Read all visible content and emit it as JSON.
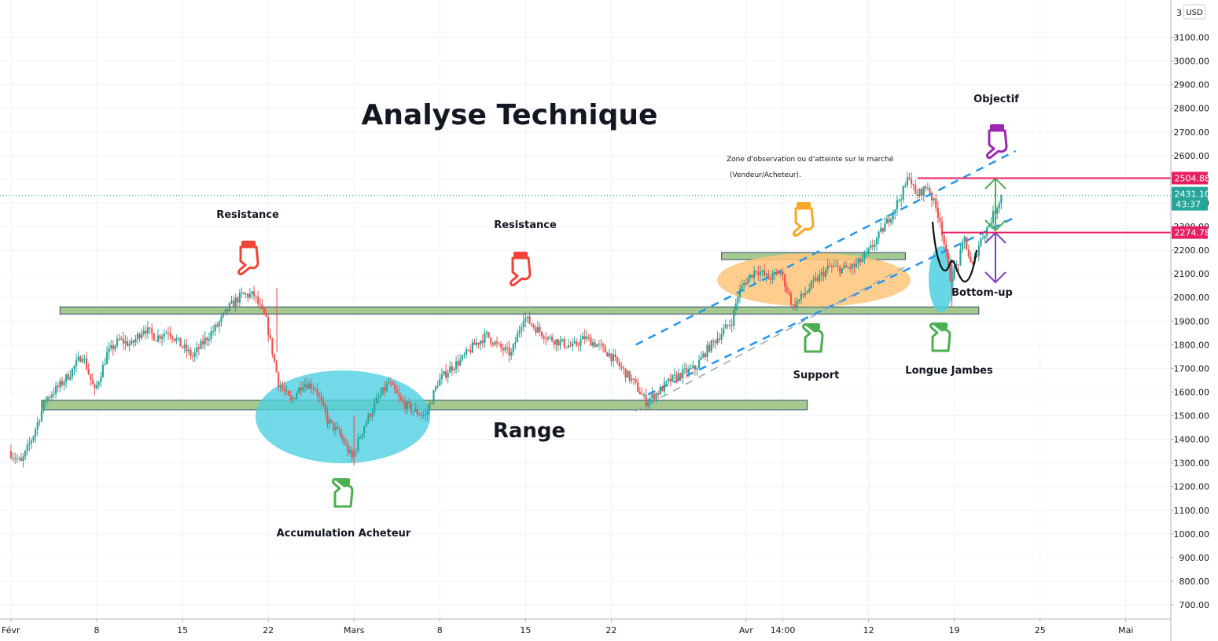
{
  "title": "Analyse Technique",
  "currency": "USD",
  "annotations": {
    "resistance_left": "Resistance",
    "resistance_mid": "Resistance",
    "range": "Range",
    "accumulation": "Accumulation Acheteur",
    "support": "Support",
    "longue_jambes": "Longue Jambes",
    "bottom_up": "Bottom-up",
    "objectif": "Objectif",
    "zone_line1": "Zone d'observation ou d'atteinte sur le marché",
    "zone_line2": "(Vendeur/Acheteur)."
  },
  "colors": {
    "up": "#26a69a",
    "down": "#ef5350",
    "zone_green": "#a5c98f",
    "ellipse_cyan": "#4dd0e1",
    "ellipse_orange": "#ffc57a",
    "trend_blue": "#2196f3",
    "hand_red": "#f44336",
    "hand_green": "#4caf50",
    "hand_orange": "#f9a825",
    "hand_purple": "#9c27b0",
    "price_badge": "#e91e63",
    "last_badge": "#26a69a"
  },
  "chart_data": {
    "type": "candlestick",
    "y_axis": {
      "min": 650,
      "max": 3150,
      "ticks": [
        700,
        800,
        900,
        1000,
        1100,
        1200,
        1300,
        1400,
        1500,
        1600,
        1700,
        1800,
        1900,
        2000,
        2100,
        2200,
        2300,
        2400,
        2500,
        2600,
        2700,
        2800,
        2900,
        3000,
        3100
      ],
      "tick_labels": [
        "700.00",
        "800.00",
        "900.00",
        "1000.00",
        "1100.00",
        "1200.00",
        "1300.00",
        "1400.00",
        "1500.00",
        "1600.00",
        "1700.00",
        "1800.00",
        "1900.00",
        "2000.00",
        "2100.00",
        "2200.00",
        "2300.00",
        "2400.00",
        "2500.00",
        "2600.00",
        "2700.00",
        "2800.00",
        "2900.00",
        "3000.00",
        "3100.00"
      ],
      "top_partial_label": "3"
    },
    "x_axis": {
      "day_min": 1,
      "day_max": 92,
      "tick_days": [
        1,
        8,
        15,
        22,
        29,
        36,
        43,
        50,
        61,
        64,
        71,
        78,
        85,
        92
      ],
      "tick_labels": [
        "Févr",
        "8",
        "15",
        "22",
        "Mars",
        "8",
        "15",
        "22",
        "Avr",
        "14:00",
        "12",
        "19",
        "25",
        "Mai"
      ]
    },
    "price_path": [
      [
        1,
        1350
      ],
      [
        2,
        1300
      ],
      [
        3,
        1420
      ],
      [
        4,
        1570
      ],
      [
        5,
        1620
      ],
      [
        6,
        1680
      ],
      [
        7,
        1760
      ],
      [
        8,
        1600
      ],
      [
        9,
        1760
      ],
      [
        10,
        1820
      ],
      [
        11,
        1800
      ],
      [
        12,
        1870
      ],
      [
        13,
        1830
      ],
      [
        14,
        1860
      ],
      [
        15,
        1800
      ],
      [
        16,
        1750
      ],
      [
        17,
        1820
      ],
      [
        18,
        1880
      ],
      [
        19,
        1960
      ],
      [
        20,
        2010
      ],
      [
        21,
        2010
      ],
      [
        22,
        1900
      ],
      [
        22.7,
        1720
      ],
      [
        23,
        1640
      ],
      [
        24,
        1560
      ],
      [
        25,
        1640
      ],
      [
        26,
        1620
      ],
      [
        27,
        1480
      ],
      [
        28,
        1420
      ],
      [
        29,
        1320
      ],
      [
        30,
        1460
      ],
      [
        31,
        1560
      ],
      [
        32,
        1640
      ],
      [
        33,
        1560
      ],
      [
        34,
        1520
      ],
      [
        35,
        1500
      ],
      [
        36,
        1640
      ],
      [
        37,
        1700
      ],
      [
        38,
        1740
      ],
      [
        39,
        1800
      ],
      [
        40,
        1840
      ],
      [
        41,
        1790
      ],
      [
        42,
        1760
      ],
      [
        43,
        1920
      ],
      [
        44,
        1870
      ],
      [
        45,
        1830
      ],
      [
        46,
        1810
      ],
      [
        47,
        1790
      ],
      [
        48,
        1830
      ],
      [
        49,
        1800
      ],
      [
        50,
        1760
      ],
      [
        51,
        1700
      ],
      [
        52,
        1640
      ],
      [
        53,
        1560
      ],
      [
        54,
        1600
      ],
      [
        55,
        1650
      ],
      [
        56,
        1680
      ],
      [
        57,
        1700
      ],
      [
        58,
        1780
      ],
      [
        59,
        1840
      ],
      [
        60,
        1900
      ],
      [
        60.5,
        2010
      ],
      [
        61,
        2060
      ],
      [
        62,
        2120
      ],
      [
        63,
        2080
      ],
      [
        64,
        2110
      ],
      [
        65,
        1960
      ],
      [
        66,
        2020
      ],
      [
        67,
        2080
      ],
      [
        68,
        2130
      ],
      [
        69,
        2120
      ],
      [
        70,
        2130
      ],
      [
        71,
        2180
      ],
      [
        72,
        2260
      ],
      [
        73,
        2350
      ],
      [
        74,
        2450
      ],
      [
        74.5,
        2520
      ],
      [
        75,
        2430
      ],
      [
        76,
        2470
      ],
      [
        77,
        2330
      ],
      [
        77.8,
        2080
      ],
      [
        78.5,
        2150
      ],
      [
        79,
        2250
      ],
      [
        79.6,
        2120
      ],
      [
        80.2,
        2230
      ],
      [
        81,
        2310
      ],
      [
        81.6,
        2380
      ],
      [
        82,
        2431.1
      ]
    ],
    "zones": [
      {
        "from_day": 5,
        "to_day": 80,
        "low": 1930,
        "high": 1960
      },
      {
        "from_day": 3.5,
        "to_day": 66,
        "low": 1525,
        "high": 1565
      },
      {
        "from_day": 59,
        "to_day": 74,
        "low": 2160,
        "high": 2190
      }
    ],
    "trend_lines": [
      {
        "from": [
          52,
          1800
        ],
        "to": [
          83,
          2620
        ]
      },
      {
        "from": [
          53,
          1590
        ],
        "to": [
          83,
          2340
        ]
      },
      {
        "from": [
          52,
          1520
        ],
        "to": [
          74,
          2130
        ]
      }
    ],
    "price_lines": [
      {
        "value": 2504.88,
        "label": "2504.88",
        "from_day": 75
      },
      {
        "value": 2274.78,
        "label": "2274.78",
        "from_day": 77
      }
    ],
    "last_price": {
      "value": 2431.1,
      "label": "2431.10",
      "countdown": "43:37"
    },
    "tick_2300_partial": "2300.00"
  }
}
